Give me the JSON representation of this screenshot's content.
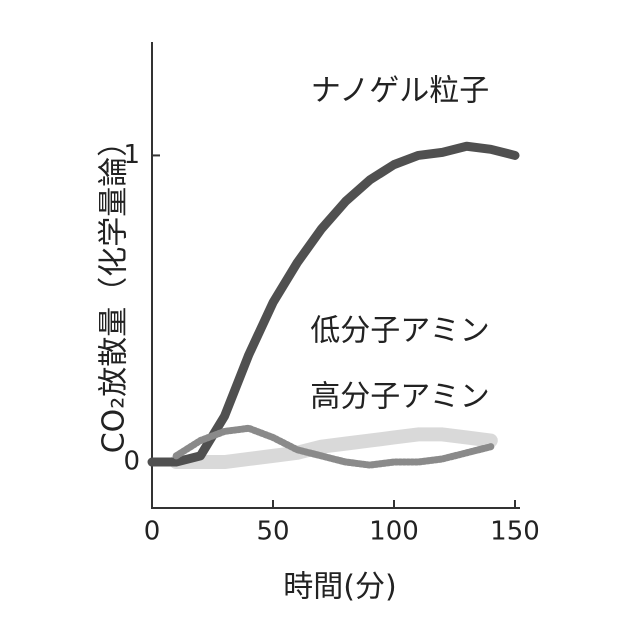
{
  "chart_data": {
    "type": "line",
    "x_label": "時間(分)",
    "y_label": "CO₂放散量（化学量論）",
    "x": [
      0,
      10,
      20,
      30,
      40,
      50,
      60,
      70,
      80,
      90,
      100,
      110,
      120,
      130,
      140,
      150
    ],
    "series": [
      {
        "name": "ナノゲル粒子",
        "color": "#505050",
        "values": [
          0,
          0,
          0.02,
          0.15,
          0.35,
          0.52,
          0.65,
          0.76,
          0.85,
          0.92,
          0.97,
          1.0,
          1.01,
          1.03,
          1.02,
          1.0
        ]
      },
      {
        "name": "低分子アミン",
        "color": "#cfcfcf",
        "values": [
          null,
          0,
          0,
          0,
          0.01,
          0.02,
          0.03,
          0.05,
          0.06,
          0.07,
          0.08,
          0.09,
          0.09,
          0.08,
          0.07,
          null
        ]
      },
      {
        "name": "高分子アミン",
        "color": "#8a8a8a",
        "values": [
          null,
          0.02,
          0.07,
          0.1,
          0.11,
          0.08,
          0.04,
          0.02,
          0,
          -0.01,
          0,
          0,
          0.01,
          0.03,
          0.05,
          null
        ]
      }
    ],
    "xlim": [
      0,
      150
    ],
    "ylim": [
      -0.15,
      1.37
    ],
    "xticks": [
      0,
      50,
      100,
      150
    ],
    "yticks": [
      0,
      1
    ]
  }
}
